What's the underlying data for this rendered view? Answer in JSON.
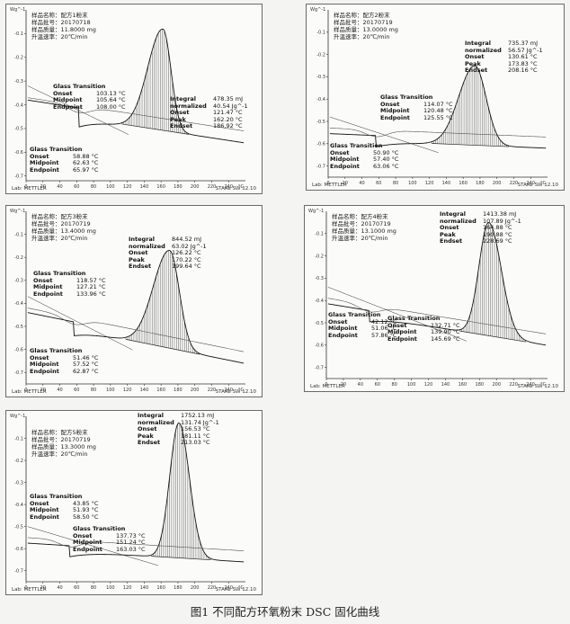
{
  "caption": "图1 不同配方环氧粉末 DSC 固化曲线",
  "common": {
    "y_unit": "Wg^-1",
    "x_unit": "°C",
    "lab": "Lab: METTLER",
    "star": "STARe SW 12.10",
    "labels": {
      "glass_transition": "Glass Transition",
      "onset": "Onset",
      "midpoint": "Midpoint",
      "endpoint": "Endpoint",
      "integral": "Integral",
      "normalized": "normalized",
      "peak": "Peak",
      "endset": "Endset"
    },
    "x_ticks": [
      "0",
      "20",
      "40",
      "60",
      "80",
      "100",
      "120",
      "140",
      "160",
      "180",
      "200",
      "220",
      "240"
    ]
  },
  "chart_data": [
    {
      "type": "line",
      "sample": {
        "name": "样品名称：配方1粉末",
        "batch": "样品批号：20170718",
        "mass": "样品质量：11.8000 mg",
        "rate": "升温速率：20℃/min"
      },
      "y_ticks": [
        "-0.1",
        "-0.2",
        "-0.3",
        "-0.4",
        "-0.5",
        "-0.6",
        "-0.7"
      ],
      "xlim": [
        0,
        260
      ],
      "ylim": [
        -0.72,
        0.0
      ],
      "glass_upper": {
        "onset": "103.13 °C",
        "midpoint": "105.64 °C",
        "endpoint": "108.00 °C"
      },
      "glass_lower": {
        "onset": "58.88 °C",
        "midpoint": "62.63 °C",
        "endpoint": "65.97 °C"
      },
      "integral": {
        "integral": "478.35 mJ",
        "normalized": "40.54 Jg^-1",
        "onset": "121.47 °C",
        "peak": "162.20 °C",
        "endset": "186.92 °C"
      },
      "curve": {
        "start_x": 2,
        "end_x": 258,
        "peak_x": 162.2,
        "onset_x": 121.5,
        "endset_x": 186.9,
        "base_start": -0.42,
        "base_end": -0.56,
        "peak_y": -0.08,
        "tg_x": 63,
        "tg_drop": 0.08
      }
    },
    {
      "type": "line",
      "sample": {
        "name": "样品名称：配方2粉末",
        "batch": "样品批号：20170719",
        "mass": "样品质量：13.0000 mg",
        "rate": "升温速率：20℃/min"
      },
      "y_ticks": [
        "-0.1",
        "-0.2",
        "-0.3",
        "-0.4",
        "-0.5",
        "-0.6",
        "-0.7"
      ],
      "xlim": [
        0,
        260
      ],
      "ylim": [
        -0.75,
        0.0
      ],
      "glass_upper": {
        "onset": "114.07 °C",
        "midpoint": "120.48 °C",
        "endpoint": "125.55 °C"
      },
      "glass_lower": {
        "onset": "50.90 °C",
        "midpoint": "57.40 °C",
        "endpoint": "63.06 °C"
      },
      "integral": {
        "integral": "735.37 mJ",
        "normalized": "56.57 Jg^-1",
        "onset": "130.61 °C",
        "peak": "173.83 °C",
        "endset": "208.16 °C"
      },
      "curve": {
        "start_x": 2,
        "end_x": 258,
        "peak_x": 173.8,
        "onset_x": 130.6,
        "endset_x": 208.2,
        "base_start": -0.58,
        "base_end": -0.62,
        "peak_y": -0.25,
        "tg_x": 57,
        "tg_drop": 0.05
      }
    },
    {
      "type": "line",
      "sample": {
        "name": "样品名称：配方3粉末",
        "batch": "样品批号：20170719",
        "mass": "样品质量：13.4000 mg",
        "rate": "升温速率：20℃/min"
      },
      "y_ticks": [
        "-0.1",
        "-0.2",
        "-0.3",
        "-0.4",
        "-0.5",
        "-0.6",
        "-0.7"
      ],
      "xlim": [
        0,
        260
      ],
      "ylim": [
        -0.75,
        0.0
      ],
      "glass_upper": {
        "onset": "118.57 °C",
        "midpoint": "127.21 °C",
        "endpoint": "133.96 °C"
      },
      "glass_lower": {
        "onset": "51.46 °C",
        "midpoint": "57.52 °C",
        "endpoint": "62.87 °C"
      },
      "integral": {
        "integral": "844.52 mJ",
        "normalized": "63.02 Jg^-1",
        "onset": "126.22 °C",
        "peak": "170.22 °C",
        "endset": "199.64 °C"
      },
      "curve": {
        "start_x": 2,
        "end_x": 258,
        "peak_x": 170.2,
        "onset_x": 126.2,
        "endset_x": 199.6,
        "base_start": -0.47,
        "base_end": -0.66,
        "peak_y": -0.17,
        "tg_x": 57,
        "tg_drop": 0.06
      }
    },
    {
      "type": "line",
      "sample": {
        "name": "样品名称：配方4粉末",
        "batch": "样品批号：20170719",
        "mass": "样品质量：13.1000 mg",
        "rate": "升温速率：20℃/min"
      },
      "y_ticks": [
        "-0.1",
        "-0.2",
        "-0.3",
        "-0.4",
        "-0.5",
        "-0.6",
        "-0.7"
      ],
      "xlim": [
        0,
        260
      ],
      "ylim": [
        -0.75,
        0.0
      ],
      "glass_upper": {
        "onset": "132.71 °C",
        "midpoint": "139.90 °C",
        "endpoint": "145.69 °C"
      },
      "glass_lower": {
        "onset": "42.12 °C",
        "midpoint": "51.06 °C",
        "endpoint": "57.86 °C"
      },
      "integral": {
        "integral": "1413.38 mJ",
        "normalized": "107.89 Jg^-1",
        "onset": "164.88 °C",
        "peak": "190.88 °C",
        "endset": "228.69 °C"
      },
      "curve": {
        "start_x": 2,
        "end_x": 258,
        "peak_x": 190.9,
        "onset_x": 164.9,
        "endset_x": 228.7,
        "base_start": -0.44,
        "base_end": -0.6,
        "peak_y": -0.05,
        "tg_x": 51,
        "tg_drop": 0.05
      }
    },
    {
      "type": "line",
      "sample": {
        "name": "样品名称：配方5粉末",
        "batch": "样品批号：20170719",
        "mass": "样品质量：13.3000 mg",
        "rate": "升温速率：20℃/min"
      },
      "y_ticks": [
        "-0.1",
        "-0.2",
        "-0.3",
        "-0.4",
        "-0.5",
        "-0.6",
        "-0.7"
      ],
      "xlim": [
        0,
        260
      ],
      "ylim": [
        -0.75,
        0.0
      ],
      "glass_upper": {
        "onset": "137.73 °C",
        "midpoint": "151.24 °C",
        "endpoint": "163.03 °C"
      },
      "glass_lower": {
        "onset": "43.85 °C",
        "midpoint": "51.93 °C",
        "endpoint": "58.50 °C"
      },
      "integral": {
        "integral": "1752.13 mJ",
        "normalized": "131.74 Jg^-1",
        "onset": "156.53 °C",
        "peak": "181.11 °C",
        "endset": "213.03 °C"
      },
      "curve": {
        "start_x": 2,
        "end_x": 258,
        "peak_x": 181.1,
        "onset_x": 156.5,
        "endset_x": 213.0,
        "base_start": -0.6,
        "base_end": -0.66,
        "peak_y": -0.03,
        "tg_x": 52,
        "tg_drop": 0.05
      }
    }
  ]
}
